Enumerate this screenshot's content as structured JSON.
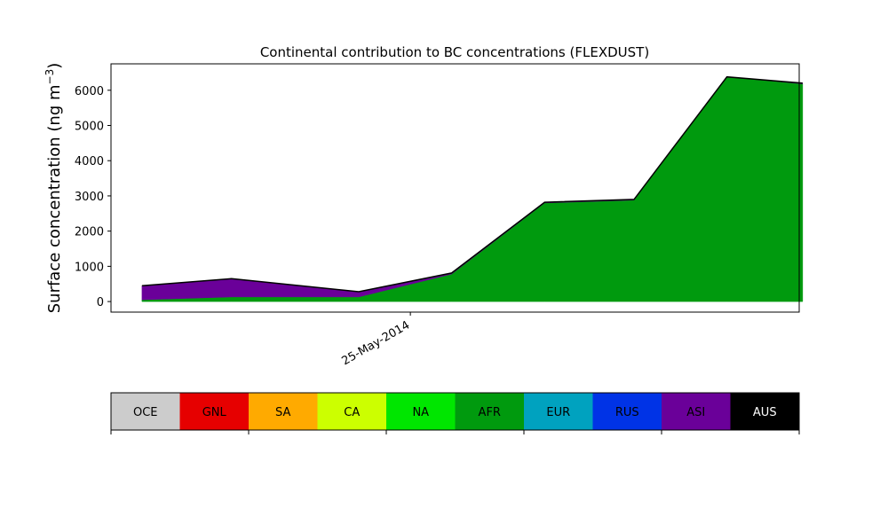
{
  "chart_data": {
    "type": "area",
    "stacked": true,
    "title": "Continental contribution to BC concentrations (FLEXDUST)",
    "ylabel": "Surface concentration (ng m",
    "ylabel_unit_sup": "−3",
    "ylabel_close": ")",
    "ylim": [
      -300,
      6750
    ],
    "yticks": [
      0,
      1000,
      2000,
      3000,
      4000,
      5000,
      6000
    ],
    "ytick_labels": [
      "0",
      "1000",
      "2000",
      "3000",
      "4000",
      "5000",
      "6000"
    ],
    "x_range": [
      -1,
      9
    ],
    "x": [
      -0.55,
      0.75,
      2.6,
      3.95,
      5.3,
      6.6,
      7.95,
      9.05
    ],
    "xtick_positions": [
      3.35
    ],
    "xtick_labels": [
      "25-May-2014"
    ],
    "grid": false,
    "series": [
      {
        "key": "OCE",
        "color": "#cccccc",
        "values": [
          0,
          0,
          0,
          0,
          0,
          0,
          0,
          0
        ]
      },
      {
        "key": "GNL",
        "color": "#e60000",
        "values": [
          0,
          0,
          0,
          0,
          0,
          0,
          0,
          0
        ]
      },
      {
        "key": "SA",
        "color": "#ffaa00",
        "values": [
          0,
          0,
          0,
          0,
          0,
          0,
          0,
          0
        ]
      },
      {
        "key": "CA",
        "color": "#ccff00",
        "values": [
          0,
          0,
          0,
          0,
          0,
          0,
          0,
          0
        ]
      },
      {
        "key": "NA",
        "color": "#00e600",
        "values": [
          0,
          0,
          0,
          0,
          0,
          0,
          0,
          0
        ]
      },
      {
        "key": "AFR",
        "color": "#009a0e",
        "values": [
          50,
          130,
          130,
          780,
          2800,
          2880,
          6380,
          6180
        ]
      },
      {
        "key": "EUR",
        "color": "#00a2bf",
        "values": [
          0,
          0,
          0,
          0,
          0,
          0,
          0,
          0
        ]
      },
      {
        "key": "RUS",
        "color": "#0033e6",
        "values": [
          0,
          0,
          0,
          0,
          0,
          0,
          0,
          0
        ]
      },
      {
        "key": "ASI",
        "color": "#6a0099",
        "values": [
          400,
          520,
          150,
          30,
          20,
          20,
          0,
          20
        ]
      },
      {
        "key": "AUS",
        "color": "#000000",
        "values": [
          0,
          0,
          0,
          0,
          0,
          0,
          0,
          0
        ]
      }
    ],
    "total_line": {
      "color": "#000000",
      "values": [
        450,
        650,
        280,
        810,
        2820,
        2900,
        6380,
        6200
      ]
    },
    "colorbar": {
      "labels": [
        "OCE",
        "GNL",
        "SA",
        "CA",
        "NA",
        "AFR",
        "EUR",
        "RUS",
        "ASI",
        "AUS"
      ],
      "colors": [
        "#cccccc",
        "#e60000",
        "#ffaa00",
        "#ccff00",
        "#00e600",
        "#009a0e",
        "#00a2bf",
        "#0033e6",
        "#6a0099",
        "#000000"
      ],
      "text_colors": [
        "#000000",
        "#000000",
        "#000000",
        "#000000",
        "#000000",
        "#000000",
        "#000000",
        "#000000",
        "#000000",
        "#ffffff"
      ],
      "tick_count": 6
    }
  }
}
